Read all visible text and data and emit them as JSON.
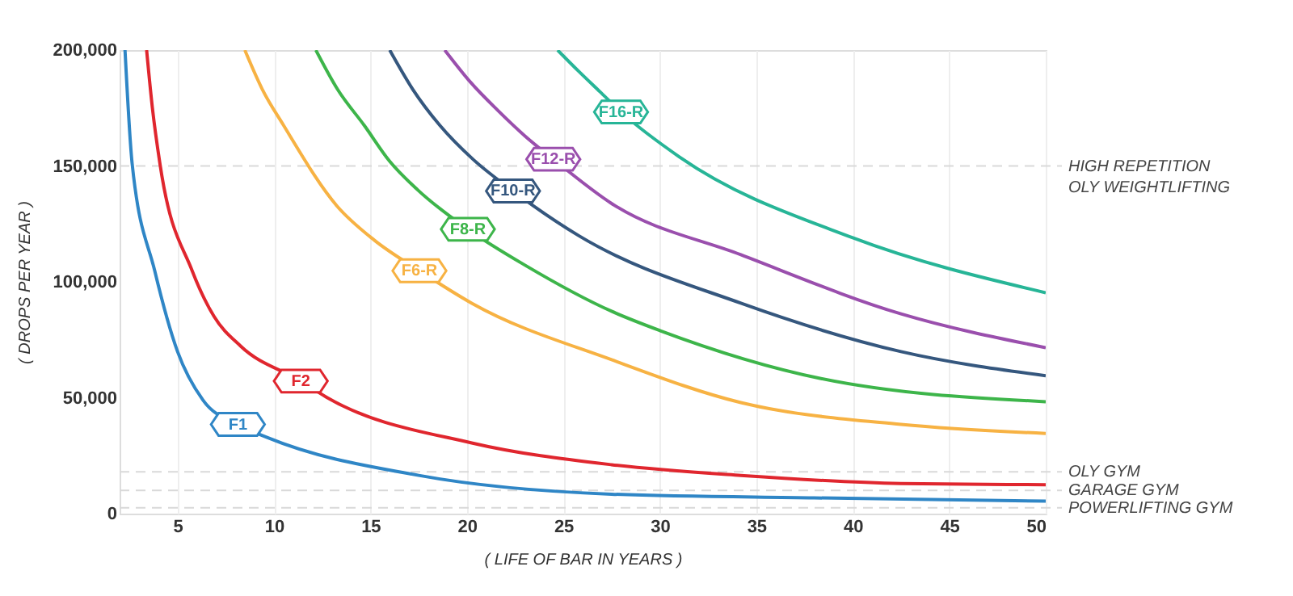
{
  "chart_data": {
    "type": "line",
    "xlabel": "( LIFE OF BAR IN YEARS )",
    "ylabel": "( DROPS PER YEAR )",
    "xlim": [
      2,
      50
    ],
    "xticks": [
      5,
      10,
      15,
      20,
      25,
      30,
      35,
      40,
      45,
      50
    ],
    "ylim": [
      0,
      200000
    ],
    "yticks": [
      0,
      {
        "value": 50000,
        "label": "50,000"
      },
      {
        "value": 100000,
        "label": "100,000"
      },
      {
        "value": 150000,
        "label": "150,000"
      },
      {
        "value": 200000,
        "label": "200,000"
      }
    ],
    "grid": "x",
    "marker": "none",
    "line_style": "solid",
    "series": [
      {
        "name": "F1",
        "color": "#2f86c6",
        "x": [
          2.28,
          2.65,
          3.82,
          5.0,
          6.32,
          8.13,
          9.67,
          17.5,
          27.5,
          38,
          50
        ],
        "values": [
          200000,
          151000,
          104800,
          70000,
          49000,
          38500,
          32800,
          16500,
          8400,
          6800,
          5400
        ]
      },
      {
        "name": "F2",
        "color": "#e0262e",
        "x": [
          3.4,
          3.7,
          4.09,
          5.76,
          6.9,
          8.27,
          11.39,
          12.73,
          20.25,
          27.5,
          34.2,
          42.5,
          50
        ],
        "values": [
          200000,
          175000,
          151000,
          104800,
          85000,
          72300,
          57200,
          50200,
          30500,
          21100,
          16500,
          13000,
          12500
        ]
      },
      {
        "name": "F6-R",
        "color": "#f7b243",
        "x": [
          8.49,
          9.4,
          10.5,
          13.28,
          15.2,
          17.54,
          20.25,
          27.5,
          34.2,
          42.5,
          50
        ],
        "values": [
          200000,
          183000,
          167500,
          132600,
          118000,
          104800,
          90800,
          66400,
          47900,
          38500,
          34600
        ]
      },
      {
        "name": "F8-R",
        "color": "#3db54a",
        "x": [
          12.17,
          13.3,
          14.68,
          16,
          17.46,
          20.05,
          23.03,
          27.5,
          30,
          38.35,
          50
        ],
        "values": [
          200000,
          183000,
          167500,
          152000,
          139600,
          122700,
          107100,
          87300,
          79000,
          58300,
          48300
        ]
      },
      {
        "name": "F10-R",
        "color": "#35577e",
        "x": [
          16.0,
          17.2,
          18.6,
          20.3,
          22.39,
          25.8,
          34.2,
          42.5,
          50
        ],
        "values": [
          200000,
          183000,
          167500,
          153000,
          139200,
          119900,
          90800,
          69900,
          59500
        ]
      },
      {
        "name": "F12-R",
        "color": "#9a4fad",
        "x": [
          18.85,
          20.2,
          21.6,
          23,
          24.48,
          27.5,
          34.2,
          42.5,
          50
        ],
        "values": [
          200000,
          186000,
          174000,
          163000,
          152900,
          133800,
          111700,
          86200,
          71600
        ]
      },
      {
        "name": "F16-R",
        "color": "#27b597",
        "x": [
          24.7,
          25.8,
          26.9,
          27.99,
          31,
          40,
          50
        ],
        "values": [
          200000,
          190800,
          182000,
          173300,
          154000,
          119000,
          95300
        ]
      }
    ],
    "ref_lines": [
      {
        "axis": "y",
        "value": 150000,
        "label": "HIGH REPETITION OLY WEIGHTLIFTING",
        "color": "#d9d9d9",
        "line_style": "dashed"
      },
      {
        "axis": "y",
        "value": 18000,
        "label": "OLY GYM",
        "color": "#d9d9d9",
        "line_style": "dashed"
      },
      {
        "axis": "y",
        "value": 10000,
        "label": "GARAGE GYM",
        "color": "#d9d9d9",
        "line_style": "dashed"
      },
      {
        "axis": "y",
        "value": 2500,
        "label": "POWERLIFTING GYM",
        "color": "#d9d9d9",
        "line_style": "dashed"
      }
    ]
  }
}
